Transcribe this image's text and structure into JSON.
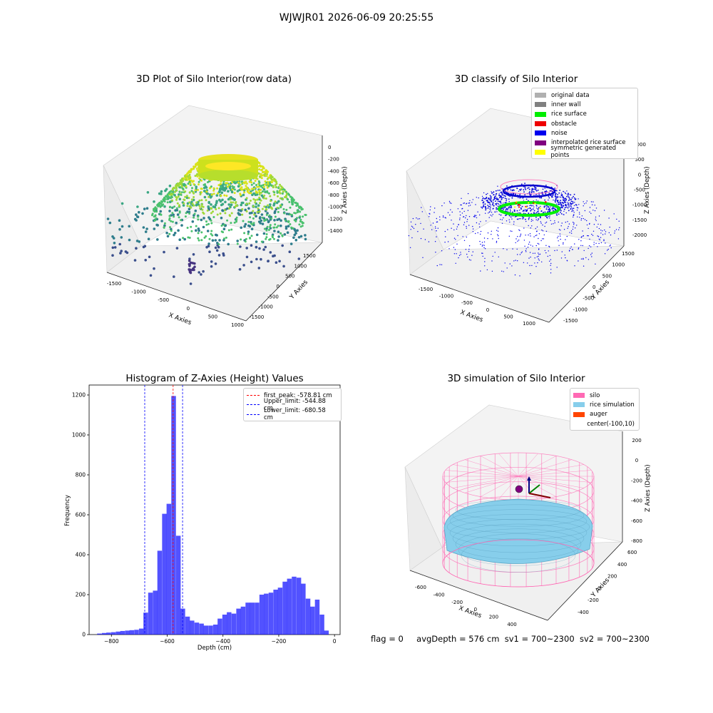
{
  "header": {
    "title": "WJWJR01 2026-06-09 20:25:55"
  },
  "panels": {
    "raw": {
      "title": "3D Plot of Silo Interior(row data)",
      "xlabel": "X Axies",
      "ylabel": "Y Axies",
      "zlabel": "Z Axies (Depth)",
      "xticks": [
        "-1500",
        "-1000",
        "-500",
        "0",
        "500",
        "1000"
      ],
      "yticks": [
        "1500",
        "1000",
        "500",
        "0",
        "-500",
        "-1000",
        "-1500"
      ],
      "zticks": [
        "0",
        "-200",
        "-400",
        "-600",
        "-800",
        "-1000",
        "-1200",
        "-1400"
      ]
    },
    "classify": {
      "title": "3D classify of Silo Interior",
      "xlabel": "X Axies",
      "ylabel": "Y Axies",
      "zlabel": "Z Axies (Depth)",
      "xticks": [
        "-1500",
        "-1000",
        "-500",
        "0",
        "500",
        "1000"
      ],
      "yticks": [
        "1500",
        "1000",
        "500",
        "0",
        "-500",
        "-1000",
        "-1500"
      ],
      "zticks": [
        "1000",
        "500",
        "0",
        "-500",
        "-1000",
        "-1500",
        "-2000"
      ],
      "legend": [
        {
          "label": "original data",
          "color": "#b0b0b0"
        },
        {
          "label": "inner wall",
          "color": "#808080"
        },
        {
          "label": "rice surface",
          "color": "#00ee00"
        },
        {
          "label": "obstacle",
          "color": "#ee0000"
        },
        {
          "label": "noise",
          "color": "#0000ee"
        },
        {
          "label": "interpolated rice surface",
          "color": "#800080"
        },
        {
          "label": "symmetric generated points",
          "color": "#ffff00"
        }
      ]
    },
    "simulation": {
      "title": "3D simulation of Silo Interior",
      "xlabel": "X Axies",
      "ylabel": "Y Axies",
      "zlabel": "Z Axies (Depth)",
      "xticks": [
        "-600",
        "-400",
        "-200",
        "0",
        "200",
        "400"
      ],
      "yticks": [
        "600",
        "400",
        "200",
        "0",
        "-200",
        "-400"
      ],
      "zticks": [
        "200",
        "0",
        "-200",
        "-400",
        "-600",
        "-800"
      ],
      "legend": [
        {
          "label": "silo",
          "color": "#ff69b4"
        },
        {
          "label": "rice simulation",
          "color": "#87ceeb"
        },
        {
          "label": "auger",
          "color": "#ff4500"
        },
        {
          "label": "center(-100,10)",
          "color": ""
        }
      ]
    }
  },
  "status": {
    "flag": "flag = 0",
    "avg": "avgDepth = 576 cm",
    "sv1": "sv1 = 700~2300",
    "sv2": "sv2 = 700~2300"
  },
  "chart_data": [
    {
      "type": "histogram",
      "title": "Histogram of Z-Axies (Height) Values",
      "xlabel": "Depth (cm)",
      "ylabel": "Frequency",
      "xlim": [
        -880,
        20
      ],
      "ylim": [
        0,
        1250
      ],
      "xticks": [
        -800,
        -600,
        -400,
        -200,
        0
      ],
      "yticks": [
        0,
        200,
        400,
        600,
        800,
        1000,
        1200
      ],
      "bar_color": "#0000ff",
      "bin_width": 16.6,
      "bins": [
        {
          "x": -843,
          "count": 5
        },
        {
          "x": -826,
          "count": 8
        },
        {
          "x": -810,
          "count": 10
        },
        {
          "x": -793,
          "count": 12
        },
        {
          "x": -776,
          "count": 15
        },
        {
          "x": -760,
          "count": 18
        },
        {
          "x": -743,
          "count": 20
        },
        {
          "x": -727,
          "count": 22
        },
        {
          "x": -710,
          "count": 24
        },
        {
          "x": -693,
          "count": 30
        },
        {
          "x": -677,
          "count": 110
        },
        {
          "x": -660,
          "count": 210
        },
        {
          "x": -643,
          "count": 220
        },
        {
          "x": -627,
          "count": 420
        },
        {
          "x": -610,
          "count": 605
        },
        {
          "x": -594,
          "count": 655
        },
        {
          "x": -577,
          "count": 1195
        },
        {
          "x": -560,
          "count": 495
        },
        {
          "x": -544,
          "count": 130
        },
        {
          "x": -527,
          "count": 90
        },
        {
          "x": -511,
          "count": 70
        },
        {
          "x": -494,
          "count": 60
        },
        {
          "x": -477,
          "count": 55
        },
        {
          "x": -461,
          "count": 45
        },
        {
          "x": -444,
          "count": 45
        },
        {
          "x": -427,
          "count": 50
        },
        {
          "x": -411,
          "count": 80
        },
        {
          "x": -394,
          "count": 100
        },
        {
          "x": -378,
          "count": 112
        },
        {
          "x": -361,
          "count": 105
        },
        {
          "x": -344,
          "count": 130
        },
        {
          "x": -328,
          "count": 140
        },
        {
          "x": -311,
          "count": 160
        },
        {
          "x": -295,
          "count": 160
        },
        {
          "x": -278,
          "count": 160
        },
        {
          "x": -261,
          "count": 200
        },
        {
          "x": -245,
          "count": 205
        },
        {
          "x": -228,
          "count": 210
        },
        {
          "x": -211,
          "count": 225
        },
        {
          "x": -195,
          "count": 235
        },
        {
          "x": -178,
          "count": 265
        },
        {
          "x": -162,
          "count": 280
        },
        {
          "x": -145,
          "count": 290
        },
        {
          "x": -128,
          "count": 285
        },
        {
          "x": -112,
          "count": 255
        },
        {
          "x": -95,
          "count": 180
        },
        {
          "x": -79,
          "count": 140
        },
        {
          "x": -62,
          "count": 175
        },
        {
          "x": -45,
          "count": 100
        },
        {
          "x": -29,
          "count": 20
        }
      ],
      "reference_lines": [
        {
          "name": "first_peak: -578.81 cm",
          "x": -578.81,
          "color": "#ff0000"
        },
        {
          "name": "Upper_limit: -544.88 cm",
          "x": -544.88,
          "color": "#0000ff"
        },
        {
          "name": "Lower_limit: -680.58 cm",
          "x": -680.58,
          "color": "#0000ff"
        }
      ]
    }
  ]
}
